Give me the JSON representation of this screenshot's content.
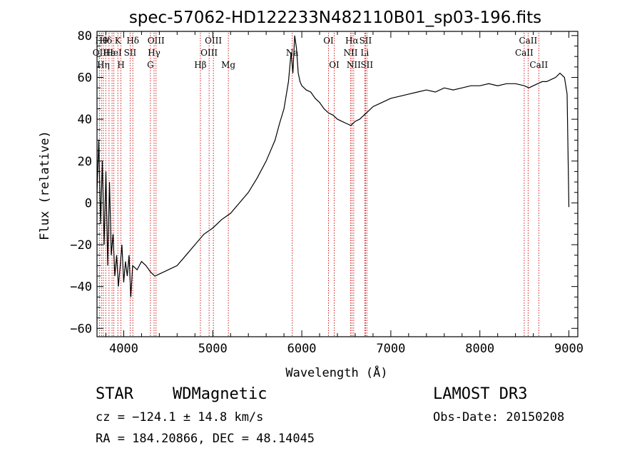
{
  "chart_data": {
    "type": "line",
    "title": "spec-57062-HD122233N482110B01_sp03-196.fits",
    "xlabel": "Wavelength (Å)",
    "ylabel": "Flux (relative)",
    "xlim": [
      3700,
      9100
    ],
    "ylim": [
      -64,
      82
    ],
    "xticks": [
      4000,
      5000,
      6000,
      7000,
      8000,
      9000
    ],
    "yticks": [
      -60,
      -40,
      -20,
      0,
      20,
      40,
      60,
      80
    ],
    "series": [
      {
        "x": [
          3700,
          3720,
          3740,
          3760,
          3780,
          3800,
          3820,
          3840,
          3860,
          3880,
          3900,
          3920,
          3940,
          3960,
          3980,
          4000,
          4020,
          4040,
          4060,
          4080,
          4100,
          4150,
          4200,
          4250,
          4300,
          4350,
          4400,
          4500,
          4600,
          4700,
          4800,
          4900,
          5000,
          5100,
          5200,
          5300,
          5400,
          5500,
          5600,
          5700,
          5750,
          5800,
          5850,
          5880,
          5900,
          5920,
          5940,
          5960,
          5980,
          6000,
          6050,
          6100,
          6150,
          6200,
          6250,
          6300,
          6350,
          6400,
          6450,
          6500,
          6550,
          6600,
          6650,
          6700,
          6750,
          6800,
          6900,
          7000,
          7100,
          7200,
          7300,
          7400,
          7500,
          7600,
          7700,
          7800,
          7900,
          8000,
          8100,
          8200,
          8300,
          8400,
          8500,
          8550,
          8600,
          8650,
          8700,
          8750,
          8800,
          8850,
          8900,
          8950,
          8980,
          9000
        ],
        "y": [
          5,
          30,
          -10,
          20,
          -20,
          15,
          -30,
          10,
          -25,
          -15,
          -35,
          -25,
          -40,
          -30,
          -20,
          -38,
          -28,
          -35,
          -25,
          -45,
          -30,
          -32,
          -28,
          -30,
          -33,
          -35,
          -34,
          -32,
          -30,
          -25,
          -20,
          -15,
          -12,
          -8,
          -5,
          0,
          5,
          12,
          20,
          30,
          38,
          45,
          58,
          72,
          62,
          80,
          74,
          62,
          58,
          56,
          54,
          53,
          50,
          48,
          45,
          43,
          42,
          40,
          39,
          38,
          37,
          39,
          40,
          42,
          44,
          46,
          48,
          50,
          51,
          52,
          53,
          54,
          53,
          55,
          54,
          55,
          56,
          56,
          57,
          56,
          57,
          57,
          56,
          55,
          56,
          57,
          58,
          58,
          59,
          60,
          62,
          60,
          52,
          -2
        ]
      }
    ],
    "lines": [
      {
        "w": 3727,
        "label": "OII",
        "row": 2
      },
      {
        "w": 3750,
        "label": "Hθ",
        "row": 1
      },
      {
        "w": 3771,
        "label": "Hη",
        "row": 3
      },
      {
        "w": 3798,
        "label": "Hδ",
        "row": 1
      },
      {
        "w": 3835,
        "label": "Hε",
        "row": 2
      },
      {
        "w": 3869,
        "label": "",
        "row": 0
      },
      {
        "w": 3889,
        "label": "HeI",
        "row": 2
      },
      {
        "w": 3934,
        "label": "K",
        "row": 1
      },
      {
        "w": 3969,
        "label": "H",
        "row": 3
      },
      {
        "w": 4072,
        "label": "SII",
        "row": 2
      },
      {
        "w": 4102,
        "label": "Hδ",
        "row": 1
      },
      {
        "w": 4300,
        "label": "G",
        "row": 3
      },
      {
        "w": 4341,
        "label": "Hγ",
        "row": 2
      },
      {
        "w": 4363,
        "label": "OIII",
        "row": 1
      },
      {
        "w": 4861,
        "label": "Hβ",
        "row": 3
      },
      {
        "w": 4959,
        "label": "OIII",
        "row": 2
      },
      {
        "w": 5007,
        "label": "OIII",
        "row": 1
      },
      {
        "w": 5175,
        "label": "Mg",
        "row": 3
      },
      {
        "w": 5893,
        "label": "Na",
        "row": 2
      },
      {
        "w": 6300,
        "label": "OI",
        "row": 1
      },
      {
        "w": 6364,
        "label": "OI",
        "row": 3
      },
      {
        "w": 6548,
        "label": "NII",
        "row": 2
      },
      {
        "w": 6563,
        "label": "Hα",
        "row": 1
      },
      {
        "w": 6583,
        "label": "NII",
        "row": 3
      },
      {
        "w": 6707,
        "label": "Li",
        "row": 2
      },
      {
        "w": 6716,
        "label": "SII",
        "row": 1
      },
      {
        "w": 6731,
        "label": "SII",
        "row": 3
      },
      {
        "w": 8498,
        "label": "CaII",
        "row": 2
      },
      {
        "w": 8542,
        "label": "CaII",
        "row": 1
      },
      {
        "w": 8662,
        "label": "CaII",
        "row": 3
      }
    ],
    "grid": false,
    "line_color": "#000000",
    "marker_color": "#cc0000"
  },
  "info": {
    "class_label": "STAR",
    "subclass": "WDMagnetic",
    "survey": "LAMOST DR3",
    "cz": "cz = −124.1 ± 14.8 km/s",
    "obs_date": "Obs-Date: 20150208",
    "coords": "RA = 184.20866, DEC =  48.14045"
  }
}
